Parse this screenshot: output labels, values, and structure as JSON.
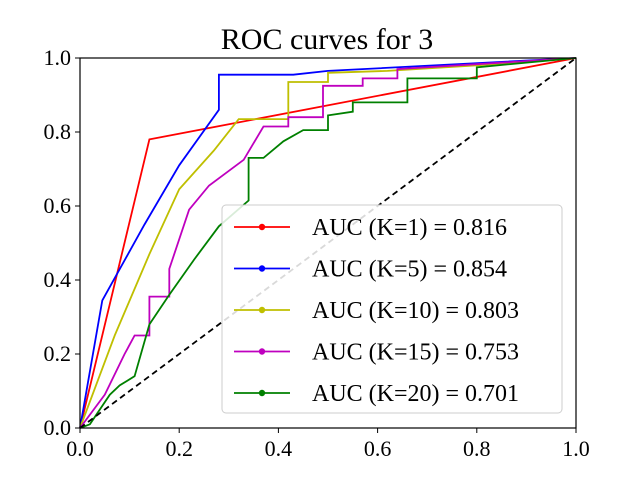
{
  "chart_data": {
    "type": "line",
    "title": "ROC curves for 3",
    "xlabel": "",
    "ylabel": "",
    "xlim": [
      0.0,
      1.0
    ],
    "ylim": [
      0.0,
      1.0
    ],
    "xticks": [
      "0.0",
      "0.2",
      "0.4",
      "0.6",
      "0.8",
      "1.0"
    ],
    "yticks": [
      "0.0",
      "0.2",
      "0.4",
      "0.6",
      "0.8",
      "1.0"
    ],
    "grid": false,
    "legend_position": "lower-right",
    "chance_line": {
      "x": [
        0,
        1
      ],
      "y": [
        0,
        1
      ],
      "color": "#000000",
      "style": "dashed"
    },
    "series": [
      {
        "name": "AUC (K=1) = 0.816",
        "color": "#ff0000",
        "x": [
          0,
          0.14,
          1.0
        ],
        "y": [
          0,
          0.78,
          1.0
        ]
      },
      {
        "name": "AUC (K=5) = 0.854",
        "color": "#0000ff",
        "x": [
          0,
          0.045,
          0.13,
          0.2,
          0.28,
          0.28,
          0.43,
          0.5,
          1.0
        ],
        "y": [
          0,
          0.345,
          0.55,
          0.71,
          0.86,
          0.955,
          0.955,
          0.965,
          1.0
        ]
      },
      {
        "name": "AUC (K=10) = 0.803",
        "color": "#bfbf00",
        "x": [
          0,
          0.07,
          0.14,
          0.2,
          0.27,
          0.32,
          0.42,
          0.42,
          0.5,
          0.5,
          0.62,
          0.8,
          1.0
        ],
        "y": [
          0,
          0.25,
          0.47,
          0.645,
          0.75,
          0.835,
          0.835,
          0.935,
          0.935,
          0.96,
          0.965,
          0.98,
          1.0
        ]
      },
      {
        "name": "AUC (K=15) = 0.753",
        "color": "#bf00bf",
        "x": [
          0,
          0.05,
          0.09,
          0.11,
          0.14,
          0.14,
          0.18,
          0.18,
          0.22,
          0.26,
          0.33,
          0.37,
          0.42,
          0.42,
          0.45,
          0.49,
          0.49,
          0.57,
          0.57,
          0.64,
          0.64,
          1.0
        ],
        "y": [
          0,
          0.09,
          0.2,
          0.25,
          0.25,
          0.355,
          0.355,
          0.43,
          0.59,
          0.655,
          0.725,
          0.815,
          0.815,
          0.84,
          0.84,
          0.84,
          0.925,
          0.925,
          0.945,
          0.945,
          0.97,
          1.0
        ]
      },
      {
        "name": "AUC (K=20) = 0.701",
        "color": "#008000",
        "x": [
          0,
          0.02,
          0.06,
          0.08,
          0.11,
          0.14,
          0.18,
          0.23,
          0.28,
          0.34,
          0.34,
          0.37,
          0.41,
          0.45,
          0.5,
          0.5,
          0.55,
          0.55,
          0.66,
          0.66,
          0.8,
          0.8,
          1.0
        ],
        "y": [
          0,
          0.01,
          0.09,
          0.115,
          0.14,
          0.28,
          0.36,
          0.455,
          0.545,
          0.615,
          0.73,
          0.73,
          0.775,
          0.805,
          0.805,
          0.845,
          0.855,
          0.88,
          0.88,
          0.945,
          0.945,
          0.975,
          1.0
        ]
      }
    ]
  }
}
